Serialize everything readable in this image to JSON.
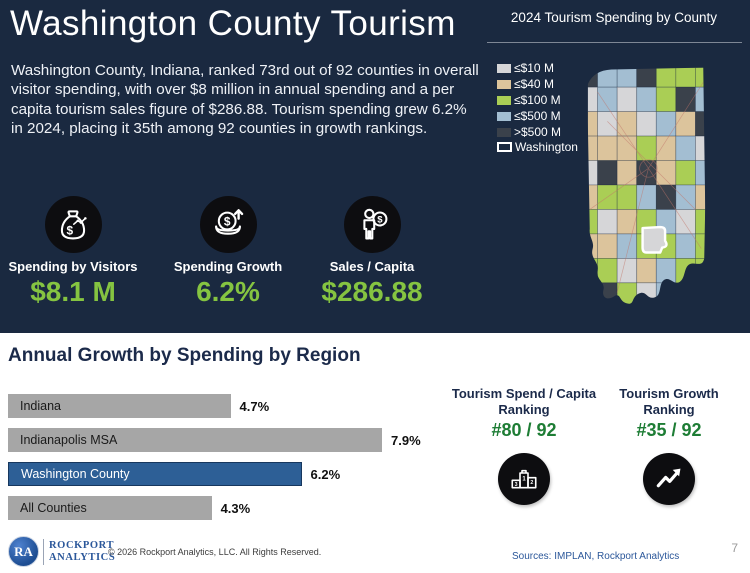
{
  "header": {
    "title": "Washington County Tourism",
    "description": "Washington County, Indiana, ranked 73rd out of 92 counties in overall visitor spending, with over $8 million in annual spending and a per capita tourism sales figure of $286.88. Tourism spending grew 6.2% in 2024, placing it 35th among 92 counties in growth rankings."
  },
  "metrics": [
    {
      "icon": "money-bag-icon",
      "label": "Spending by Visitors",
      "value": "$8.1 M"
    },
    {
      "icon": "coin-growth-icon",
      "label": "Spending Growth",
      "value": "6.2%"
    },
    {
      "icon": "person-dollar-icon",
      "label": "Sales / Capita",
      "value": "$286.88"
    }
  ],
  "map_panel": {
    "title": "2024 Tourism Spending by County",
    "legend": [
      {
        "label": "≤$10 M",
        "color": "#d6d6d8",
        "key": "w"
      },
      {
        "label": "≤$40 M",
        "color": "#dcc49c",
        "key": "t"
      },
      {
        "label": "≤$100 M",
        "color": "#aace55",
        "key": "g"
      },
      {
        "label": "≤$500 M",
        "color": "#a3bed2",
        "key": "b"
      },
      {
        "label": ">$500 M",
        "color": "#3a414b",
        "key": "d"
      }
    ],
    "highlight_label": "Washington",
    "highlight_stroke": "#ffffff",
    "highlight_fill": "#d6d6d8",
    "category_colors": {
      "w": "#d6d6d8",
      "t": "#dcc49c",
      "g": "#aace55",
      "b": "#a3bed2",
      "d": "#3a414b"
    },
    "grid": [
      "dbbdggg",
      "wbwbgdb",
      "twtwbtd",
      "tttgtbw",
      "wdtdtgb",
      "tggbdbt",
      "gwtgbwg",
      "ttbggbg",
      "ggwtbgg",
      "tdgwbgg"
    ]
  },
  "chart_data": {
    "type": "bar",
    "orientation": "horizontal",
    "title": "Annual Growth by Spending by Region",
    "categories": [
      "Indiana",
      "Indianapolis MSA",
      "Washington County",
      "All Counties"
    ],
    "values": [
      4.7,
      7.9,
      6.2,
      4.3
    ],
    "value_labels": [
      "4.7%",
      "7.9%",
      "6.2%",
      "4.3%"
    ],
    "bar_colors": [
      "#a6a6a6",
      "#a6a6a6",
      "#2d5f96",
      "#a6a6a6"
    ],
    "highlight_index": 2,
    "xlim": [
      0,
      7.9
    ],
    "grid": false,
    "legend": "none"
  },
  "rankings": [
    {
      "title": "Tourism Spend / Capita Ranking",
      "value": "#80 / 92",
      "icon": "podium-icon"
    },
    {
      "title": "Tourism Growth Ranking",
      "value": "#35 / 92",
      "icon": "trend-up-icon"
    }
  ],
  "footer": {
    "logo_initials": "RA",
    "logo_line1": "Rockport",
    "logo_line2": "Analytics",
    "copyright": "© 2026 Rockport Analytics, LLC. All Rights Reserved.",
    "sources": "Sources: IMPLAN, Rockport Analytics",
    "page_number": "7"
  },
  "colors": {
    "navy_background": "#1a2940",
    "accent_green": "#85c441",
    "ranking_green": "#1e7d35",
    "bar_gray": "#a6a6a6",
    "bar_blue": "#2d5f96",
    "title_navy": "#1b2a4a",
    "source_blue": "#2b579a"
  }
}
